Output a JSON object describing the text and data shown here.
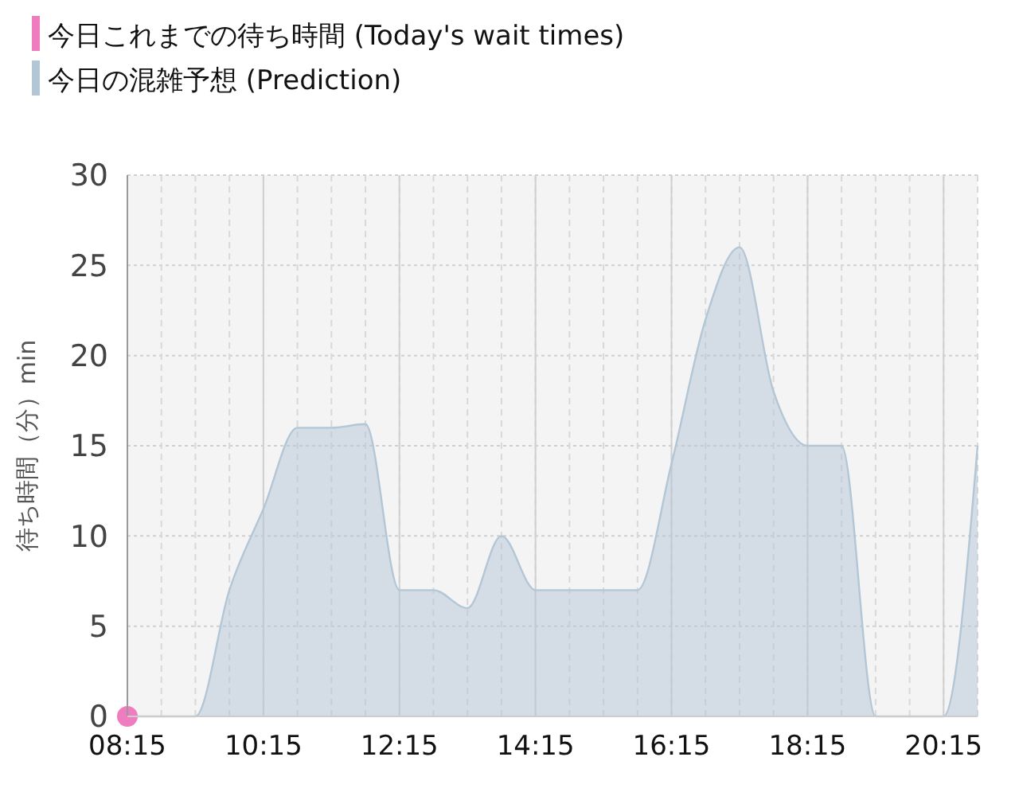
{
  "chart_data": {
    "type": "area",
    "ylabel": "待ち時間（分）min",
    "xlim": [
      8.25,
      20.75
    ],
    "ylim": [
      0,
      30
    ],
    "xticks": [
      {
        "value": 8.25,
        "label": "08:15"
      },
      {
        "value": 10.25,
        "label": "10:15"
      },
      {
        "value": 12.25,
        "label": "12:15"
      },
      {
        "value": 14.25,
        "label": "14:15"
      },
      {
        "value": 16.25,
        "label": "16:15"
      },
      {
        "value": 18.25,
        "label": "18:15"
      },
      {
        "value": 20.25,
        "label": "20:15"
      }
    ],
    "yticks": [
      0,
      5,
      10,
      15,
      20,
      25,
      30
    ],
    "grid": true,
    "legend": "top left",
    "series": [
      {
        "name": "今日これまでの待ち時間 (Today's wait times)",
        "type": "scatter",
        "color": "#f07cc0",
        "x": [
          8.25
        ],
        "values": [
          0
        ],
        "marker": "circle"
      },
      {
        "name": "今日の混雑予想 (Prediction)",
        "color": "#b3c6d6",
        "x": [
          8.25,
          8.75,
          9.25,
          9.75,
          10.25,
          10.75,
          11.25,
          11.75,
          12.25,
          12.75,
          13.25,
          13.75,
          14.25,
          14.75,
          15.25,
          15.75,
          16.25,
          16.75,
          17.25,
          17.75,
          18.25,
          18.75,
          19.25,
          19.75,
          20.25,
          20.75
        ],
        "values": [
          0,
          0,
          0,
          7,
          11.5,
          16,
          16,
          16.2,
          7,
          7,
          6,
          10,
          7,
          7,
          7,
          7,
          14,
          22,
          26,
          18,
          15,
          15,
          0,
          0,
          0,
          15
        ]
      }
    ]
  }
}
